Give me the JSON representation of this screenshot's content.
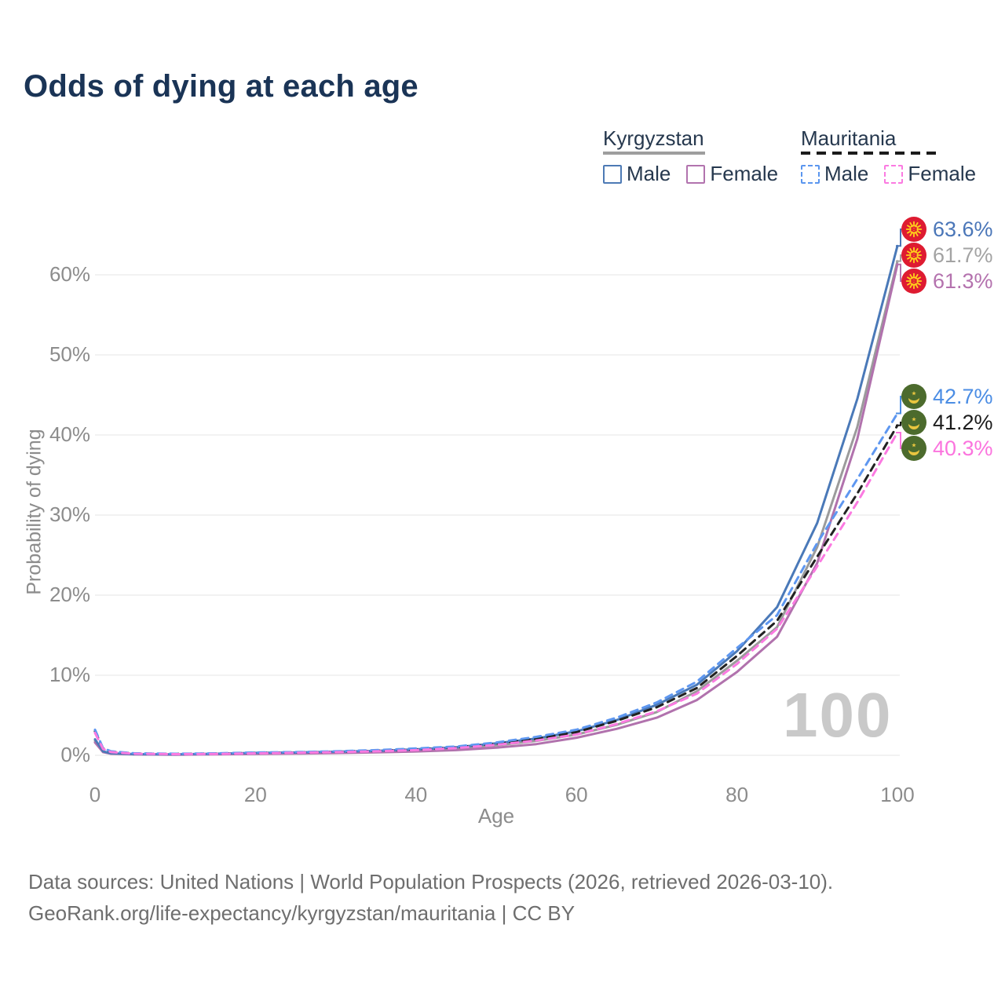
{
  "title": "Odds of dying at each age",
  "watermark_age": "100",
  "legend": {
    "groups": [
      {
        "country": "Kyrgyzstan",
        "line_style": "solid",
        "underline_color": "#9e9e9e",
        "items": [
          {
            "label": "Male",
            "swatch_color": "#4d7ab5",
            "swatch_style": "solid"
          },
          {
            "label": "Female",
            "swatch_color": "#b273ae",
            "swatch_style": "solid"
          }
        ]
      },
      {
        "country": "Mauritania",
        "line_style": "dashed",
        "underline_color": "#1b1b1b",
        "items": [
          {
            "label": "Male",
            "swatch_color": "#5b96ef",
            "swatch_style": "dashed"
          },
          {
            "label": "Female",
            "swatch_color": "#fb7ae1",
            "swatch_style": "dashed"
          }
        ]
      }
    ]
  },
  "axes": {
    "y_title": "Probability of dying",
    "x_title": "Age",
    "y_ticks": [
      {
        "value": 0,
        "label": "0%"
      },
      {
        "value": 10,
        "label": "10%"
      },
      {
        "value": 20,
        "label": "20%"
      },
      {
        "value": 30,
        "label": "30%"
      },
      {
        "value": 40,
        "label": "40%"
      },
      {
        "value": 50,
        "label": "50%"
      },
      {
        "value": 60,
        "label": "60%"
      }
    ],
    "x_ticks": [
      {
        "value": 0,
        "label": "0"
      },
      {
        "value": 20,
        "label": "20"
      },
      {
        "value": 40,
        "label": "40"
      },
      {
        "value": 60,
        "label": "60"
      },
      {
        "value": 80,
        "label": "80"
      },
      {
        "value": 100,
        "label": "100"
      }
    ]
  },
  "end_labels": [
    {
      "series": "kyrgyzstan_male",
      "text": "63.6%",
      "color": "#4a76b8",
      "flag": "kyrgyzstan"
    },
    {
      "series": "kyrgyzstan_both",
      "text": "61.7%",
      "color": "#a3a3a3",
      "flag": "kyrgyzstan"
    },
    {
      "series": "kyrgyzstan_female",
      "text": "61.3%",
      "color": "#b472ae",
      "flag": "kyrgyzstan"
    },
    {
      "series": "mauritania_male",
      "text": "42.7%",
      "color": "#4b8de4",
      "flag": "mauritania"
    },
    {
      "series": "mauritania_both",
      "text": "41.2%",
      "color": "#1c1c1c",
      "flag": "mauritania"
    },
    {
      "series": "mauritania_female",
      "text": "40.3%",
      "color": "#fb74de",
      "flag": "mauritania"
    }
  ],
  "chart_data": {
    "type": "line",
    "title": "Odds of dying at each age",
    "xlabel": "Age",
    "ylabel": "Probability of dying",
    "x_range": [
      0,
      100
    ],
    "y_range_percent": [
      0,
      65
    ],
    "grid": "horizontal",
    "legend_position": "top-right",
    "x": [
      0,
      1,
      2,
      5,
      10,
      15,
      20,
      25,
      30,
      35,
      40,
      45,
      50,
      55,
      60,
      65,
      70,
      75,
      80,
      85,
      90,
      95,
      100
    ],
    "series": [
      {
        "name": "kyrgyzstan_both",
        "country": "Kyrgyzstan",
        "sex": "Both",
        "color": "#9b9b9b",
        "dash": false,
        "values": [
          1.8,
          0.45,
          0.22,
          0.13,
          0.1,
          0.17,
          0.25,
          0.3,
          0.38,
          0.47,
          0.62,
          0.85,
          1.25,
          1.8,
          2.6,
          3.8,
          5.4,
          8.0,
          11.8,
          16.0,
          26.0,
          41.0,
          61.7
        ]
      },
      {
        "name": "kyrgyzstan_female",
        "country": "Kyrgyzstan",
        "sex": "Female",
        "color": "#b172ad",
        "dash": false,
        "values": [
          1.6,
          0.4,
          0.2,
          0.12,
          0.08,
          0.13,
          0.18,
          0.22,
          0.28,
          0.36,
          0.48,
          0.65,
          0.95,
          1.4,
          2.2,
          3.3,
          4.7,
          6.9,
          10.4,
          14.8,
          24.0,
          39.5,
          61.3
        ]
      },
      {
        "name": "kyrgyzstan_male",
        "country": "Kyrgyzstan",
        "sex": "Male",
        "color": "#4a79b8",
        "dash": false,
        "values": [
          2.0,
          0.5,
          0.25,
          0.15,
          0.12,
          0.2,
          0.3,
          0.35,
          0.45,
          0.55,
          0.75,
          1.0,
          1.5,
          2.1,
          3.0,
          4.4,
          6.3,
          8.8,
          13.0,
          18.5,
          29.0,
          44.5,
          63.6
        ]
      },
      {
        "name": "mauritania_both",
        "country": "Mauritania",
        "sex": "Both",
        "color": "#222222",
        "dash": true,
        "values": [
          3.0,
          0.85,
          0.45,
          0.22,
          0.18,
          0.22,
          0.3,
          0.36,
          0.45,
          0.58,
          0.75,
          1.0,
          1.45,
          2.05,
          2.9,
          4.3,
          6.0,
          8.4,
          12.4,
          16.8,
          24.8,
          32.7,
          41.2
        ]
      },
      {
        "name": "mauritania_male",
        "country": "Mauritania",
        "sex": "Male",
        "color": "#5e97f0",
        "dash": true,
        "values": [
          3.2,
          0.9,
          0.5,
          0.25,
          0.2,
          0.25,
          0.35,
          0.4,
          0.5,
          0.65,
          0.85,
          1.1,
          1.6,
          2.3,
          3.2,
          4.7,
          6.6,
          9.2,
          13.4,
          17.5,
          26.5,
          34.5,
          42.7
        ]
      },
      {
        "name": "mauritania_female",
        "country": "Mauritania",
        "sex": "Female",
        "color": "#fb7ae1",
        "dash": true,
        "values": [
          2.8,
          0.8,
          0.4,
          0.2,
          0.15,
          0.18,
          0.25,
          0.32,
          0.4,
          0.5,
          0.65,
          0.9,
          1.3,
          1.85,
          2.6,
          3.9,
          5.5,
          7.7,
          11.4,
          15.8,
          23.6,
          31.6,
          40.3
        ]
      }
    ],
    "end_values": {
      "kyrgyzstan_male": 63.6,
      "kyrgyzstan_both": 61.7,
      "kyrgyzstan_female": 61.3,
      "mauritania_male": 42.7,
      "mauritania_both": 41.2,
      "mauritania_female": 40.3
    },
    "current_age_indicator": "100"
  },
  "footer": {
    "line1": "Data sources: United Nations | World Population Prospects (2026, retrieved 2026-03-10).",
    "line2": "GeoRank.org/life-expectancy/kyrgyzstan/mauritania | CC BY"
  }
}
